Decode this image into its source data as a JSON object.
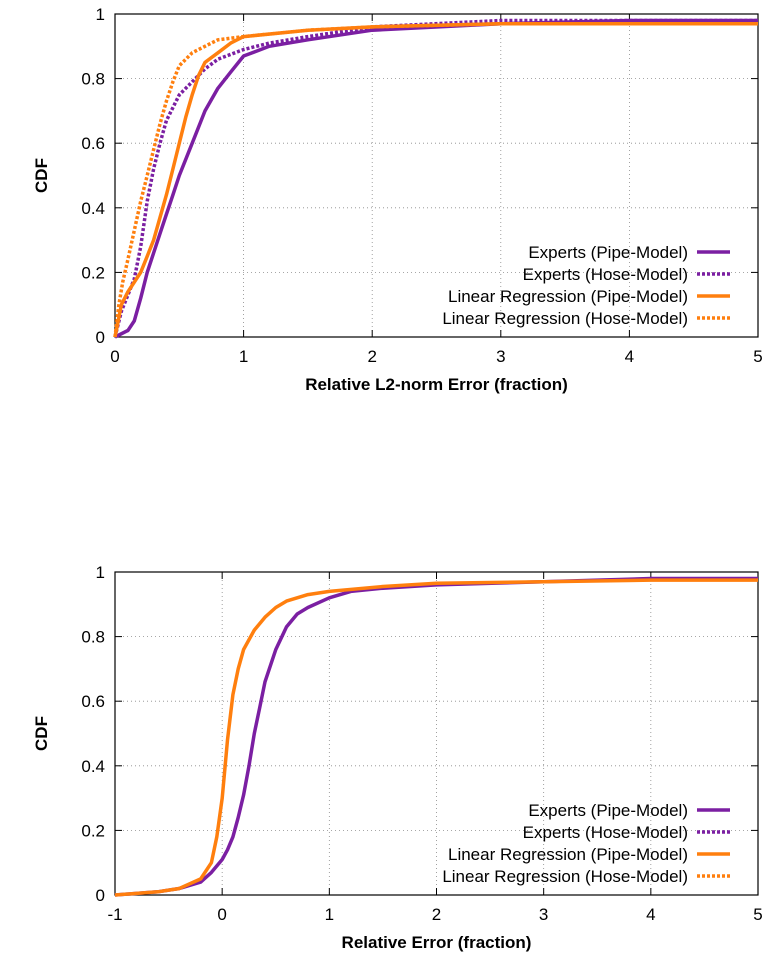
{
  "colors": {
    "experts": "#7b1fa2",
    "linear_regression": "#ff7f0e"
  },
  "chart_data": [
    {
      "type": "line",
      "xlabel": "Relative L2-norm Error (fraction)",
      "ylabel": "CDF",
      "xlim": [
        0,
        5
      ],
      "ylim": [
        0,
        1
      ],
      "xticks": [
        0,
        1,
        2,
        3,
        4,
        5
      ],
      "yticks": [
        0,
        0.2,
        0.4,
        0.6,
        0.8,
        1
      ],
      "grid": true,
      "legend_position": "bottom-right",
      "series": [
        {
          "name": "Experts (Pipe-Model)",
          "color": "#7b1fa2",
          "style": "solid",
          "x": [
            0,
            0.1,
            0.15,
            0.2,
            0.25,
            0.3,
            0.35,
            0.4,
            0.45,
            0.5,
            0.6,
            0.7,
            0.8,
            0.9,
            1.0,
            1.2,
            1.5,
            2.0,
            3.0,
            4.0,
            5.0
          ],
          "y": [
            0,
            0.02,
            0.05,
            0.12,
            0.2,
            0.26,
            0.32,
            0.38,
            0.44,
            0.5,
            0.6,
            0.7,
            0.77,
            0.82,
            0.87,
            0.9,
            0.92,
            0.95,
            0.97,
            0.98,
            0.98
          ]
        },
        {
          "name": "Experts (Hose-Model)",
          "color": "#7b1fa2",
          "style": "dotted",
          "x": [
            0,
            0.05,
            0.1,
            0.15,
            0.2,
            0.25,
            0.3,
            0.35,
            0.4,
            0.5,
            0.6,
            0.7,
            0.8,
            1.0,
            1.2,
            1.5,
            2.0,
            3.0,
            4.0,
            5.0
          ],
          "y": [
            0,
            0.08,
            0.13,
            0.18,
            0.28,
            0.42,
            0.52,
            0.6,
            0.67,
            0.75,
            0.79,
            0.83,
            0.86,
            0.89,
            0.91,
            0.93,
            0.96,
            0.98,
            0.98,
            0.98
          ]
        },
        {
          "name": "Linear Regression (Pipe-Model)",
          "color": "#ff7f0e",
          "style": "solid",
          "x": [
            0,
            0.05,
            0.1,
            0.15,
            0.2,
            0.25,
            0.3,
            0.35,
            0.4,
            0.45,
            0.5,
            0.55,
            0.6,
            0.65,
            0.7,
            0.8,
            0.9,
            1.0,
            1.5,
            2.0,
            3.0,
            4.0,
            5.0
          ],
          "y": [
            0,
            0.1,
            0.14,
            0.17,
            0.2,
            0.25,
            0.3,
            0.37,
            0.44,
            0.52,
            0.6,
            0.68,
            0.75,
            0.81,
            0.85,
            0.88,
            0.91,
            0.93,
            0.95,
            0.96,
            0.97,
            0.97,
            0.97
          ]
        },
        {
          "name": "Linear Regression (Hose-Model)",
          "color": "#ff7f0e",
          "style": "dotted",
          "x": [
            0,
            0.03,
            0.06,
            0.1,
            0.15,
            0.2,
            0.25,
            0.3,
            0.35,
            0.4,
            0.45,
            0.5,
            0.6,
            0.7,
            0.8,
            1.0,
            1.5,
            2.0,
            3.0,
            4.0,
            5.0
          ],
          "y": [
            0,
            0.1,
            0.17,
            0.24,
            0.33,
            0.42,
            0.5,
            0.58,
            0.66,
            0.73,
            0.79,
            0.84,
            0.88,
            0.9,
            0.92,
            0.93,
            0.95,
            0.96,
            0.97,
            0.97,
            0.97
          ]
        }
      ]
    },
    {
      "type": "line",
      "xlabel": "Relative Error (fraction)",
      "ylabel": "CDF",
      "xlim": [
        -1,
        5
      ],
      "ylim": [
        0,
        1
      ],
      "xticks": [
        -1,
        0,
        1,
        2,
        3,
        4,
        5
      ],
      "yticks": [
        0,
        0.2,
        0.4,
        0.6,
        0.8,
        1
      ],
      "grid": true,
      "legend_position": "bottom-right",
      "series": [
        {
          "name": "Experts (Pipe-Model)",
          "color": "#7b1fa2",
          "style": "solid",
          "x": [
            -1,
            -0.6,
            -0.4,
            -0.2,
            -0.1,
            0,
            0.05,
            0.1,
            0.15,
            0.2,
            0.25,
            0.3,
            0.35,
            0.4,
            0.5,
            0.6,
            0.7,
            0.8,
            1.0,
            1.2,
            1.5,
            2.0,
            3.0,
            4.0,
            5.0
          ],
          "y": [
            0,
            0.01,
            0.02,
            0.04,
            0.07,
            0.11,
            0.14,
            0.18,
            0.24,
            0.31,
            0.4,
            0.5,
            0.58,
            0.66,
            0.76,
            0.83,
            0.87,
            0.89,
            0.92,
            0.94,
            0.95,
            0.96,
            0.97,
            0.98,
            0.98
          ]
        },
        {
          "name": "Linear Regression (Pipe-Model)",
          "color": "#ff7f0e",
          "style": "solid",
          "x": [
            -1,
            -0.6,
            -0.4,
            -0.2,
            -0.1,
            -0.05,
            0,
            0.05,
            0.1,
            0.15,
            0.2,
            0.3,
            0.4,
            0.5,
            0.6,
            0.8,
            1.0,
            1.5,
            2.0,
            3.0,
            4.0,
            5.0
          ],
          "y": [
            0,
            0.01,
            0.02,
            0.05,
            0.1,
            0.18,
            0.3,
            0.48,
            0.62,
            0.7,
            0.76,
            0.82,
            0.86,
            0.89,
            0.91,
            0.93,
            0.94,
            0.955,
            0.965,
            0.97,
            0.975,
            0.975
          ]
        }
      ],
      "legend_entries": [
        {
          "name": "Experts (Pipe-Model)",
          "color": "#7b1fa2",
          "style": "solid"
        },
        {
          "name": "Experts (Hose-Model)",
          "color": "#7b1fa2",
          "style": "dotted"
        },
        {
          "name": "Linear Regression (Pipe-Model)",
          "color": "#ff7f0e",
          "style": "solid"
        },
        {
          "name": "Linear Regression (Hose-Model)",
          "color": "#ff7f0e",
          "style": "dotted"
        }
      ]
    }
  ]
}
